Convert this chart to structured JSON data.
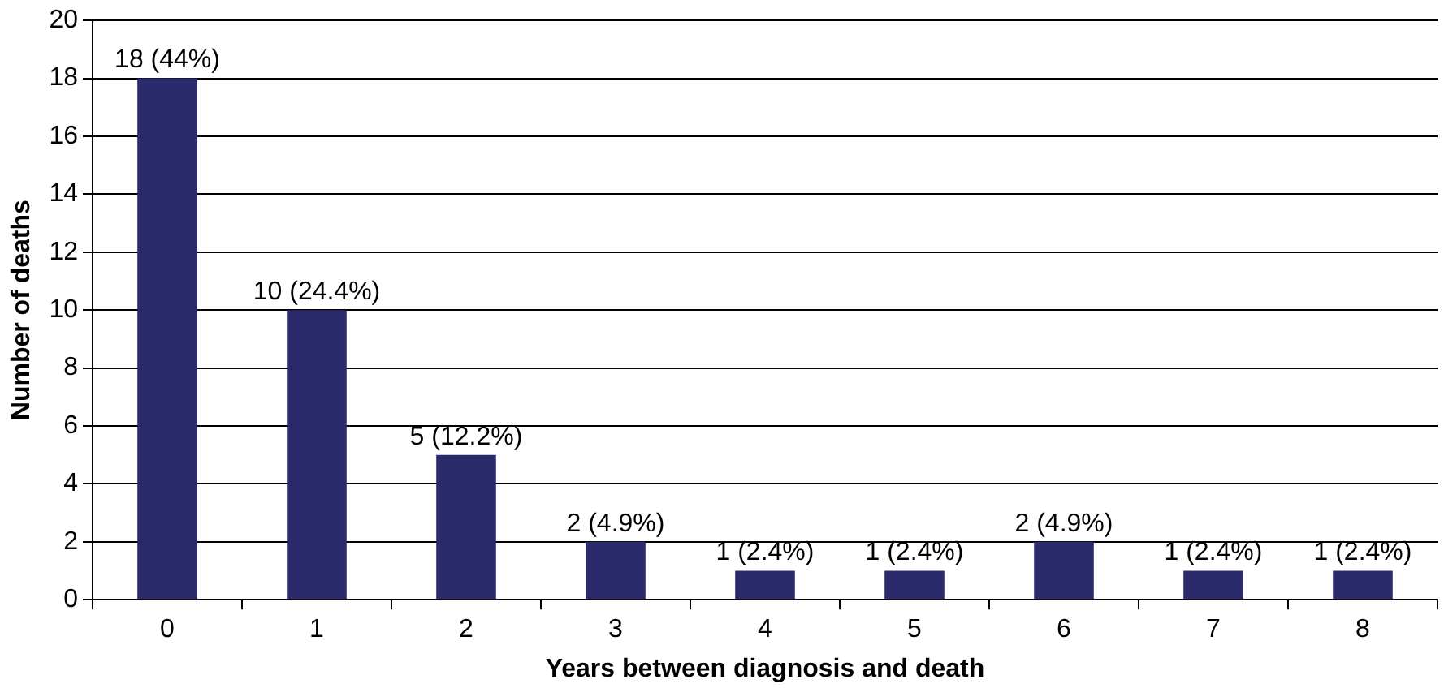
{
  "chart_data": {
    "type": "bar",
    "xlabel": "Years between diagnosis and death",
    "ylabel": "Number of deaths",
    "categories": [
      "0",
      "1",
      "2",
      "3",
      "4",
      "5",
      "6",
      "7",
      "8"
    ],
    "values": [
      18,
      10,
      5,
      2,
      1,
      1,
      2,
      1,
      1
    ],
    "value_labels": [
      "18 (44%)",
      "10 (24.4%)",
      "5 (12.2%)",
      "2 (4.9%)",
      "1 (2.4%)",
      "1 (2.4%)",
      "2 (4.9%)",
      "1 (2.4%)",
      "1 (2.4%)"
    ],
    "color": "#2b2a6b",
    "ylim": [
      0,
      20
    ],
    "yticks": [
      0,
      2,
      4,
      6,
      8,
      10,
      12,
      14,
      16,
      18,
      20
    ],
    "grid": "y",
    "legend": false
  }
}
